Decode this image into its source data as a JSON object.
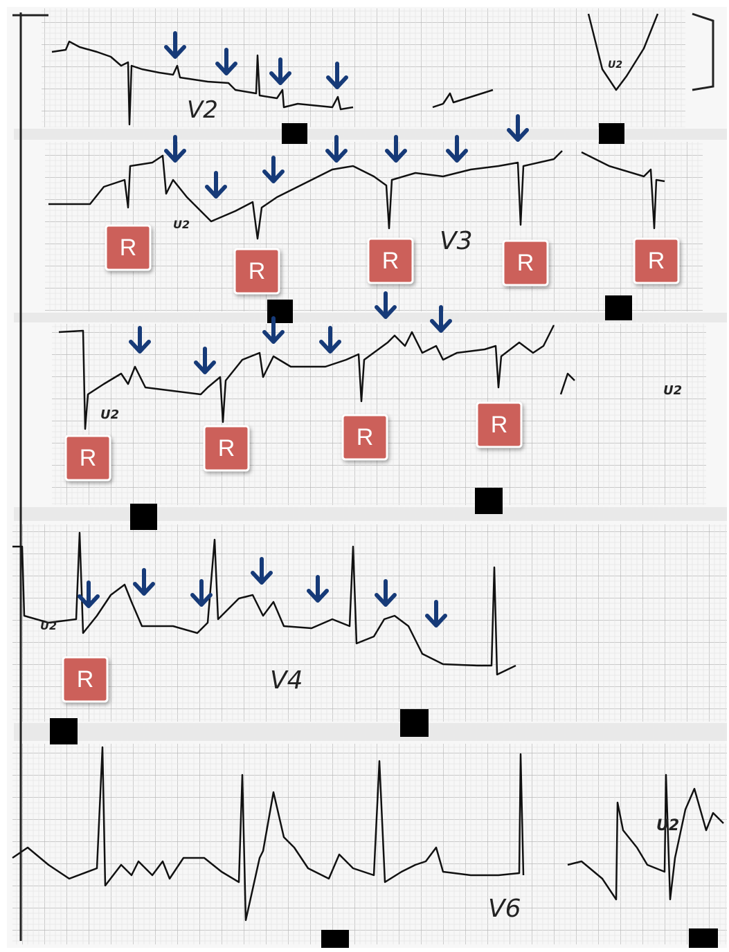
{
  "strips": [
    {
      "lead": "V2",
      "marks": [
        "U2"
      ]
    },
    {
      "lead": "V3",
      "marks": [
        "U2"
      ],
      "r_labels": [
        "R",
        "R",
        "R",
        "R",
        "R"
      ]
    },
    {
      "marks": [
        "U2",
        "U2"
      ],
      "r_labels": [
        "R",
        "R",
        "R",
        "R"
      ]
    },
    {
      "lead": "V4",
      "marks": [
        "U2"
      ],
      "r_labels": [
        "R"
      ]
    },
    {
      "lead": "V6",
      "marks": [
        "U2"
      ]
    }
  ]
}
